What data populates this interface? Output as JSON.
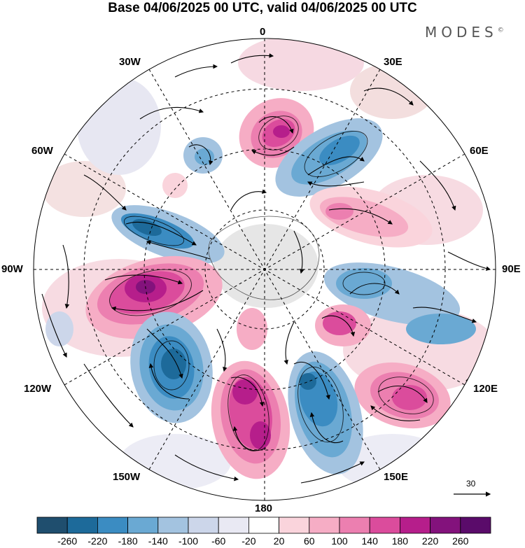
{
  "title": "Base 04/06/2025 00 UTC, valid 04/06/2025 00 UTC",
  "brand": "MODES",
  "brand_mark": "©",
  "longitude_labels": {
    "lon_0": "0",
    "lon_30e": "30E",
    "lon_60e": "60E",
    "lon_90e": "90E",
    "lon_120e": "120E",
    "lon_150e": "150E",
    "lon_180": "180",
    "lon_150w": "150W",
    "lon_120w": "120W",
    "lon_90w": "90W",
    "lon_60w": "60W",
    "lon_30w": "30W"
  },
  "reference_vector": "30",
  "colorbar": {
    "colors": [
      "#1f4e6e",
      "#1d6a9a",
      "#3b8cc2",
      "#6aa9d3",
      "#a3c3e0",
      "#ccd6ea",
      "#e9e9f3",
      "#ffffff",
      "#fad4dc",
      "#f6adc5",
      "#ec7fb0",
      "#db4c9c",
      "#b61e8b",
      "#83127c",
      "#5a0b6a"
    ],
    "labels": [
      "-260",
      "-220",
      "-180",
      "-140",
      "-100",
      "-60",
      "-20",
      "20",
      "60",
      "100",
      "140",
      "180",
      "220",
      "260"
    ]
  }
}
